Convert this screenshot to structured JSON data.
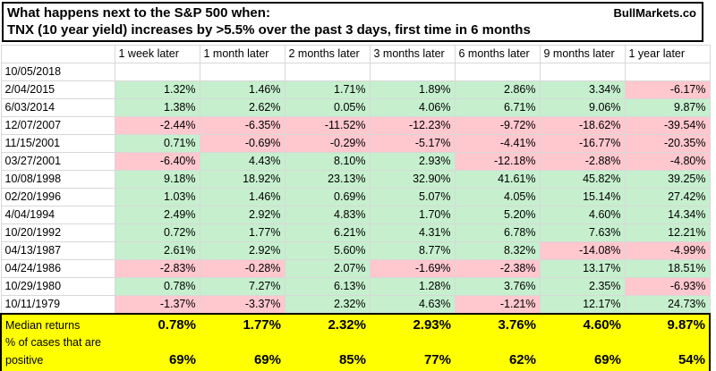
{
  "header": {
    "title_line1": "What happens next to the S&P 500 when:",
    "title_line2": "TNX (10 year yield) increases by >5.5% over the past 3 days, first time in 6 months",
    "brand": "BullMarkets.co"
  },
  "colors": {
    "positive_bg": "#c6efce",
    "negative_bg": "#ffc7ce",
    "summary_bg": "#ffff00"
  },
  "chart_data": {
    "type": "table",
    "title": "What happens next to the S&P 500 when: TNX (10 year yield) increases by >5.5% over the past 3 days, first time in 6 months",
    "columns": [
      "1 week later",
      "1 month later",
      "2 months later",
      "3 months later",
      "6 months later",
      "9 months later",
      "1 year later"
    ],
    "rows": [
      {
        "date": "10/05/2018",
        "values": [
          "",
          "",
          "",
          "",
          "",
          "",
          ""
        ]
      },
      {
        "date": "2/04/2015",
        "values": [
          "1.32%",
          "1.46%",
          "1.71%",
          "1.89%",
          "2.86%",
          "3.34%",
          "-6.17%"
        ]
      },
      {
        "date": "6/03/2014",
        "values": [
          "1.38%",
          "2.62%",
          "0.05%",
          "4.06%",
          "6.71%",
          "9.06%",
          "9.87%"
        ]
      },
      {
        "date": "12/07/2007",
        "values": [
          "-2.44%",
          "-6.35%",
          "-11.52%",
          "-12.23%",
          "-9.72%",
          "-18.62%",
          "-39.54%"
        ]
      },
      {
        "date": "11/15/2001",
        "values": [
          "0.71%",
          "-0.69%",
          "-0.29%",
          "-5.17%",
          "-4.41%",
          "-16.77%",
          "-20.35%"
        ]
      },
      {
        "date": "03/27/2001",
        "values": [
          "-6.40%",
          "4.43%",
          "8.10%",
          "2.93%",
          "-12.18%",
          "-2.88%",
          "-4.80%"
        ]
      },
      {
        "date": "10/08/1998",
        "values": [
          "9.18%",
          "18.92%",
          "23.13%",
          "32.90%",
          "41.61%",
          "45.82%",
          "39.25%"
        ]
      },
      {
        "date": "02/20/1996",
        "values": [
          "1.03%",
          "1.46%",
          "0.69%",
          "5.07%",
          "4.05%",
          "15.14%",
          "27.42%"
        ]
      },
      {
        "date": "4/04/1994",
        "values": [
          "2.49%",
          "2.92%",
          "4.83%",
          "1.70%",
          "5.20%",
          "4.60%",
          "14.34%"
        ]
      },
      {
        "date": "10/20/1992",
        "values": [
          "0.72%",
          "1.77%",
          "6.21%",
          "4.31%",
          "6.78%",
          "7.63%",
          "12.21%"
        ]
      },
      {
        "date": "04/13/1987",
        "values": [
          "2.61%",
          "2.92%",
          "5.60%",
          "8.77%",
          "8.32%",
          "-14.08%",
          "-4.99%"
        ]
      },
      {
        "date": "04/24/1986",
        "values": [
          "-2.83%",
          "-0.28%",
          "2.07%",
          "-1.69%",
          "-2.38%",
          "13.17%",
          "18.51%"
        ]
      },
      {
        "date": "10/29/1980",
        "values": [
          "0.78%",
          "7.27%",
          "6.13%",
          "1.28%",
          "3.76%",
          "2.35%",
          "-6.93%"
        ]
      },
      {
        "date": "10/11/1979",
        "values": [
          "-1.37%",
          "-3.37%",
          "2.32%",
          "4.63%",
          "-1.21%",
          "12.17%",
          "24.73%"
        ]
      }
    ],
    "summary": {
      "median_label": "Median returns",
      "median_values": [
        "0.78%",
        "1.77%",
        "2.32%",
        "2.93%",
        "3.76%",
        "4.60%",
        "9.87%"
      ],
      "positive_label_line1": "% of cases that are",
      "positive_label_line2": "positive",
      "positive_values": [
        "69%",
        "69%",
        "85%",
        "77%",
        "62%",
        "69%",
        "54%"
      ]
    }
  }
}
